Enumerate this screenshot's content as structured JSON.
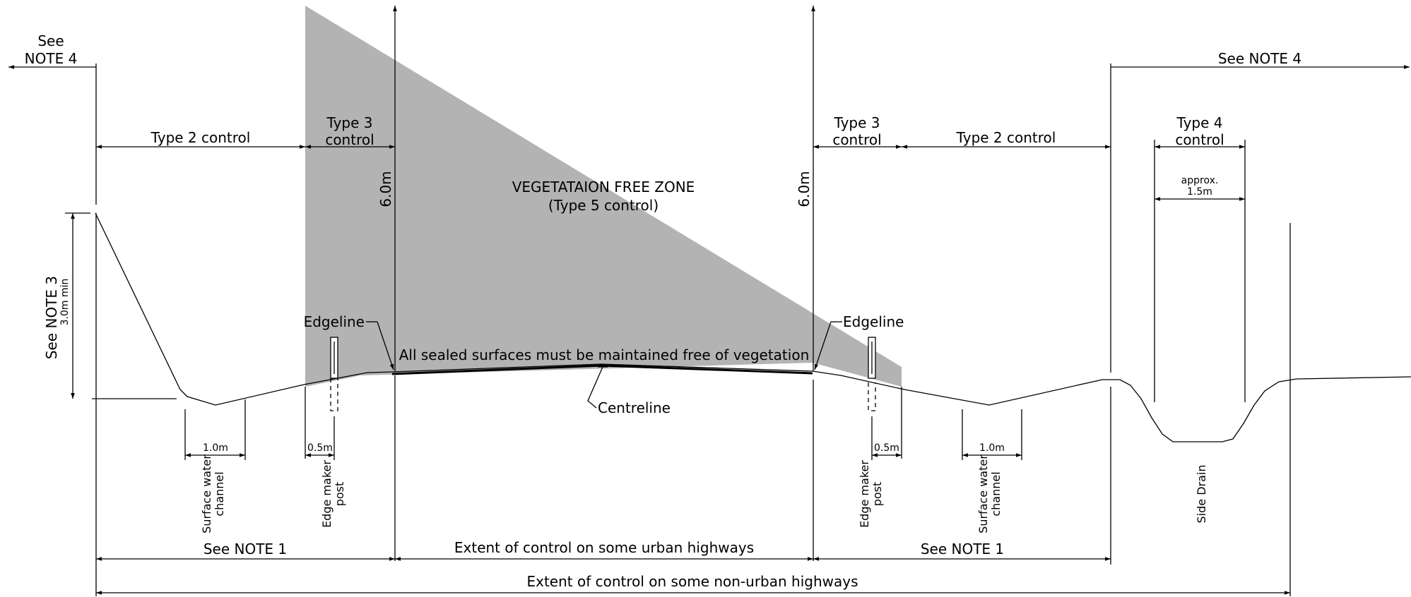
{
  "notes": {
    "see_note_4_left_a": "See",
    "see_note_4_left_b": "NOTE 4",
    "see_note_4_right": "See NOTE 4",
    "see_note_3": "See NOTE 3",
    "three_m_min": "3.0m min",
    "see_note_1_left": "See NOTE 1",
    "see_note_1_right": "See NOTE 1"
  },
  "controls": {
    "type2_left": "Type 2 control",
    "type3_left_a": "Type 3",
    "type3_left_b": "control",
    "type3_right_a": "Type 3",
    "type3_right_b": "control",
    "type2_right": "Type 2 control",
    "type4_a": "Type 4",
    "type4_b": "control"
  },
  "zone": {
    "title": "VEGETATAION FREE ZONE",
    "subtitle": "(Type 5 control)",
    "sealed_note": "All sealed surfaces must be maintained free of vegetation"
  },
  "dimensions": {
    "height_left": "6.0m",
    "height_right": "6.0m",
    "approx_a": "approx.",
    "approx_b": "1.5m",
    "channel_left": "1.0m",
    "post_left": "0.5m",
    "post_right": "0.5m",
    "channel_right": "1.0m"
  },
  "callouts": {
    "edgeline_left": "Edgeline",
    "edgeline_right": "Edgeline",
    "centreline": "Centreline"
  },
  "features": {
    "surface_channel_left_a": "Surface water",
    "surface_channel_left_b": "channel",
    "edge_post_left_a": "Edge maker",
    "edge_post_left_b": "post",
    "edge_post_right_a": "Edge maker",
    "edge_post_right_b": "post",
    "surface_channel_right_a": "Surface water",
    "surface_channel_right_b": "channel",
    "side_drain": "Side Drain"
  },
  "extents": {
    "urban": "Extent of control on some urban highways",
    "non_urban": "Extent of control on some non-urban highways"
  },
  "colors": {
    "zone_fill": "#b3b3b3",
    "ink": "#000000"
  }
}
